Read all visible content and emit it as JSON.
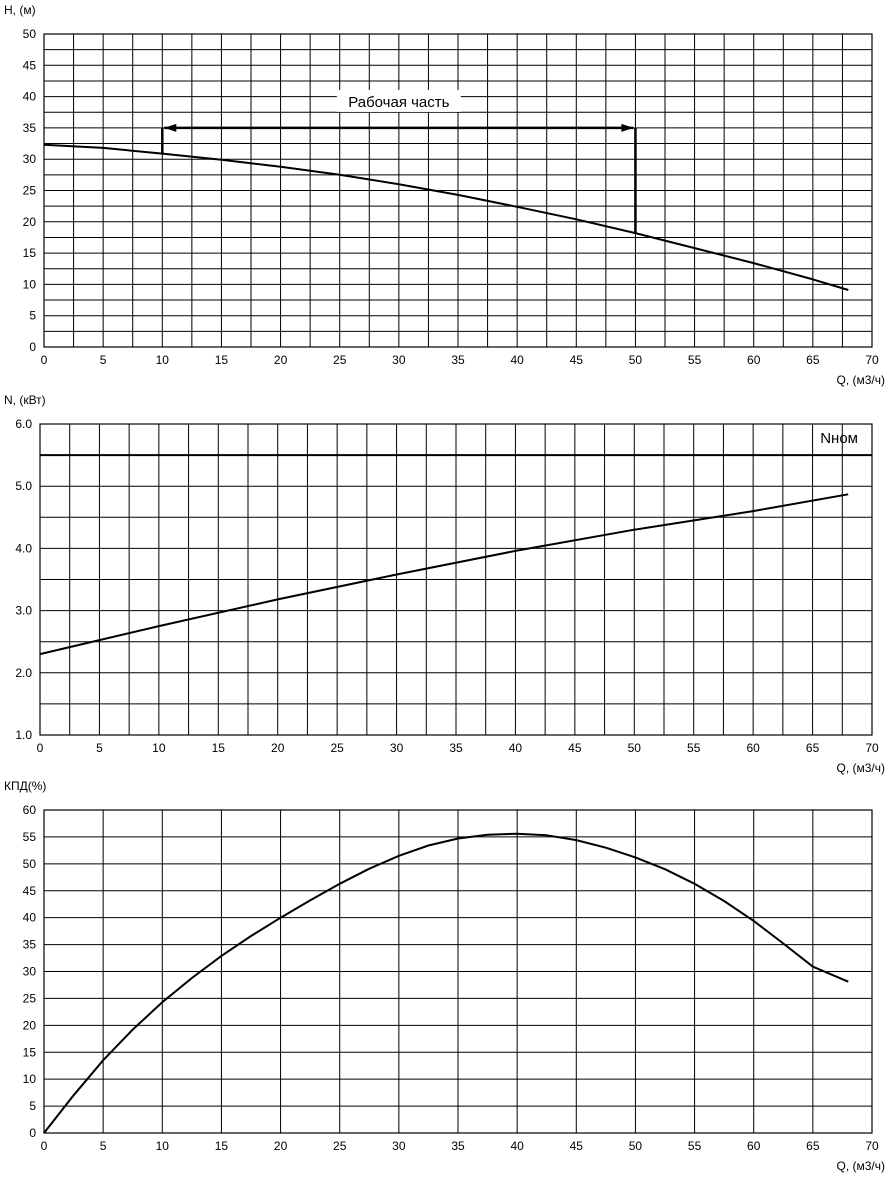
{
  "chart_data": [
    {
      "id": "head",
      "type": "line",
      "ylabel": "H, (м)",
      "xlabel": "Q, (м3/ч)",
      "xlim": [
        0,
        70
      ],
      "ylim": [
        0,
        50
      ],
      "x_ticks": [
        0,
        5,
        10,
        15,
        20,
        25,
        30,
        35,
        40,
        45,
        50,
        55,
        60,
        65,
        70
      ],
      "y_ticks": [
        0,
        5,
        10,
        15,
        20,
        25,
        30,
        35,
        40,
        45,
        50
      ],
      "grid": true,
      "series": [
        {
          "x": [
            0,
            5,
            10,
            15,
            20,
            25,
            30,
            35,
            40,
            45,
            50,
            55,
            60,
            65,
            68
          ],
          "y": [
            32.3,
            31.8,
            30.9,
            29.9,
            28.8,
            27.5,
            26.0,
            24.3,
            22.4,
            20.4,
            18.2,
            15.8,
            13.4,
            10.8,
            9.1
          ]
        }
      ],
      "annotation": {
        "text": "Рабочая часть",
        "x_start": 10,
        "x_end": 50,
        "y_level": 35
      }
    },
    {
      "id": "power",
      "type": "line",
      "ylabel": "N, (кВт)",
      "xlabel": "Q, (м3/ч)",
      "xlim": [
        0,
        70
      ],
      "ylim": [
        1.0,
        6.0
      ],
      "x_ticks": [
        0,
        5,
        10,
        15,
        20,
        25,
        30,
        35,
        40,
        45,
        50,
        55,
        60,
        65,
        70
      ],
      "y_ticks": [
        "1.0",
        "2.0",
        "3.0",
        "4.0",
        "5.0",
        "6.0"
      ],
      "grid": true,
      "series": [
        {
          "x": [
            0,
            10,
            20,
            30,
            40,
            50,
            60,
            68
          ],
          "y": [
            2.3,
            2.75,
            3.18,
            3.58,
            3.96,
            4.3,
            4.6,
            4.87
          ]
        }
      ],
      "reference_line": {
        "label": "Nном",
        "y": 5.5
      }
    },
    {
      "id": "efficiency",
      "type": "line",
      "ylabel": "КПД(%)",
      "xlabel": "Q, (м3/ч)",
      "xlim": [
        0,
        70
      ],
      "ylim": [
        0,
        60
      ],
      "x_ticks": [
        0,
        5,
        10,
        15,
        20,
        25,
        30,
        35,
        40,
        45,
        50,
        55,
        60,
        65,
        70
      ],
      "y_ticks": [
        0,
        5,
        10,
        15,
        20,
        25,
        30,
        35,
        40,
        45,
        50,
        55,
        60
      ],
      "grid": true,
      "series": [
        {
          "x": [
            0,
            2.5,
            5,
            7.5,
            10,
            12.5,
            15,
            17.5,
            20,
            22.5,
            25,
            27.5,
            30,
            32.5,
            35,
            37.5,
            40,
            42.5,
            45,
            47.5,
            50,
            52.5,
            55,
            57.5,
            60,
            62.5,
            65,
            68
          ],
          "y": [
            0,
            7,
            13.5,
            19.2,
            24.3,
            28.8,
            32.9,
            36.6,
            40.0,
            43.2,
            46.3,
            49.1,
            51.5,
            53.4,
            54.7,
            55.4,
            55.6,
            55.3,
            54.4,
            53.0,
            51.2,
            49.0,
            46.3,
            43.1,
            39.4,
            35.2,
            30.9,
            28.1
          ]
        }
      ]
    }
  ]
}
